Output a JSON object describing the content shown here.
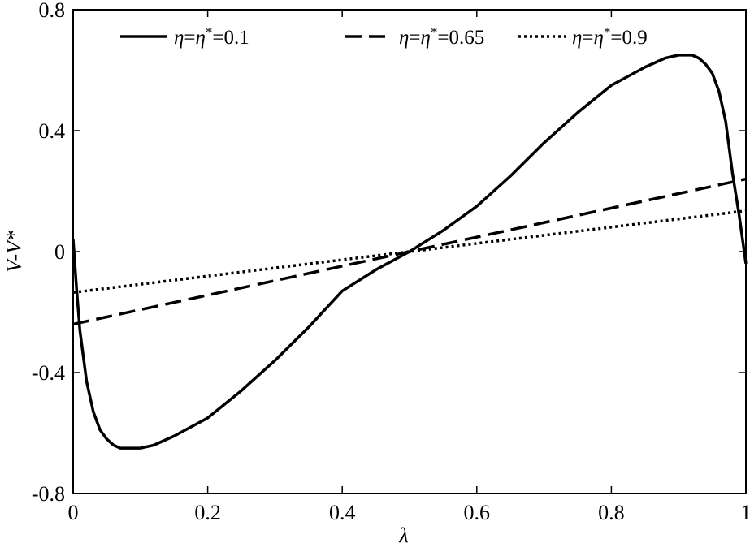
{
  "chart_data": {
    "type": "line",
    "title": "",
    "xlabel": "λ",
    "ylabel": "V-V*",
    "xlim": [
      0,
      1
    ],
    "ylim": [
      -0.8,
      0.8
    ],
    "xticks": [
      0,
      0.2,
      0.4,
      0.6,
      0.8,
      1
    ],
    "xtick_labels": [
      "0",
      "0.2",
      "0.4",
      "0.6",
      "0.8",
      "1"
    ],
    "yticks": [
      -0.8,
      -0.4,
      0,
      0.4,
      0.8
    ],
    "ytick_labels": [
      "-0.8",
      "-0.4",
      "0",
      "0.4",
      "0.8"
    ],
    "grid": false,
    "legend_position": "top",
    "series": [
      {
        "name": "η=η*=0.1",
        "line_style": "solid",
        "color": "#000000",
        "x": [
          0,
          0.005,
          0.01,
          0.02,
          0.03,
          0.04,
          0.05,
          0.06,
          0.07,
          0.08,
          0.09,
          0.1,
          0.12,
          0.15,
          0.2,
          0.25,
          0.3,
          0.35,
          0.4,
          0.45,
          0.5,
          0.55,
          0.6,
          0.65,
          0.7,
          0.75,
          0.8,
          0.85,
          0.88,
          0.9,
          0.91,
          0.92,
          0.93,
          0.94,
          0.95,
          0.96,
          0.97,
          0.98,
          0.99,
          0.995,
          1
        ],
        "y": [
          0.04,
          -0.12,
          -0.26,
          -0.43,
          -0.53,
          -0.59,
          -0.62,
          -0.64,
          -0.65,
          -0.65,
          -0.65,
          -0.65,
          -0.64,
          -0.61,
          -0.55,
          -0.46,
          -0.36,
          -0.25,
          -0.13,
          -0.06,
          0.0,
          0.07,
          0.15,
          0.25,
          0.36,
          0.46,
          0.55,
          0.61,
          0.64,
          0.65,
          0.65,
          0.65,
          0.64,
          0.62,
          0.59,
          0.53,
          0.43,
          0.26,
          0.12,
          0.04,
          -0.04
        ]
      },
      {
        "name": "η=η*=0.65",
        "line_style": "dashed",
        "color": "#000000",
        "x": [
          0,
          1
        ],
        "y": [
          -0.24,
          0.24
        ]
      },
      {
        "name": "η=η*=0.9",
        "line_style": "dotted",
        "color": "#000000",
        "x": [
          0,
          1
        ],
        "y": [
          -0.135,
          0.135
        ]
      }
    ]
  }
}
